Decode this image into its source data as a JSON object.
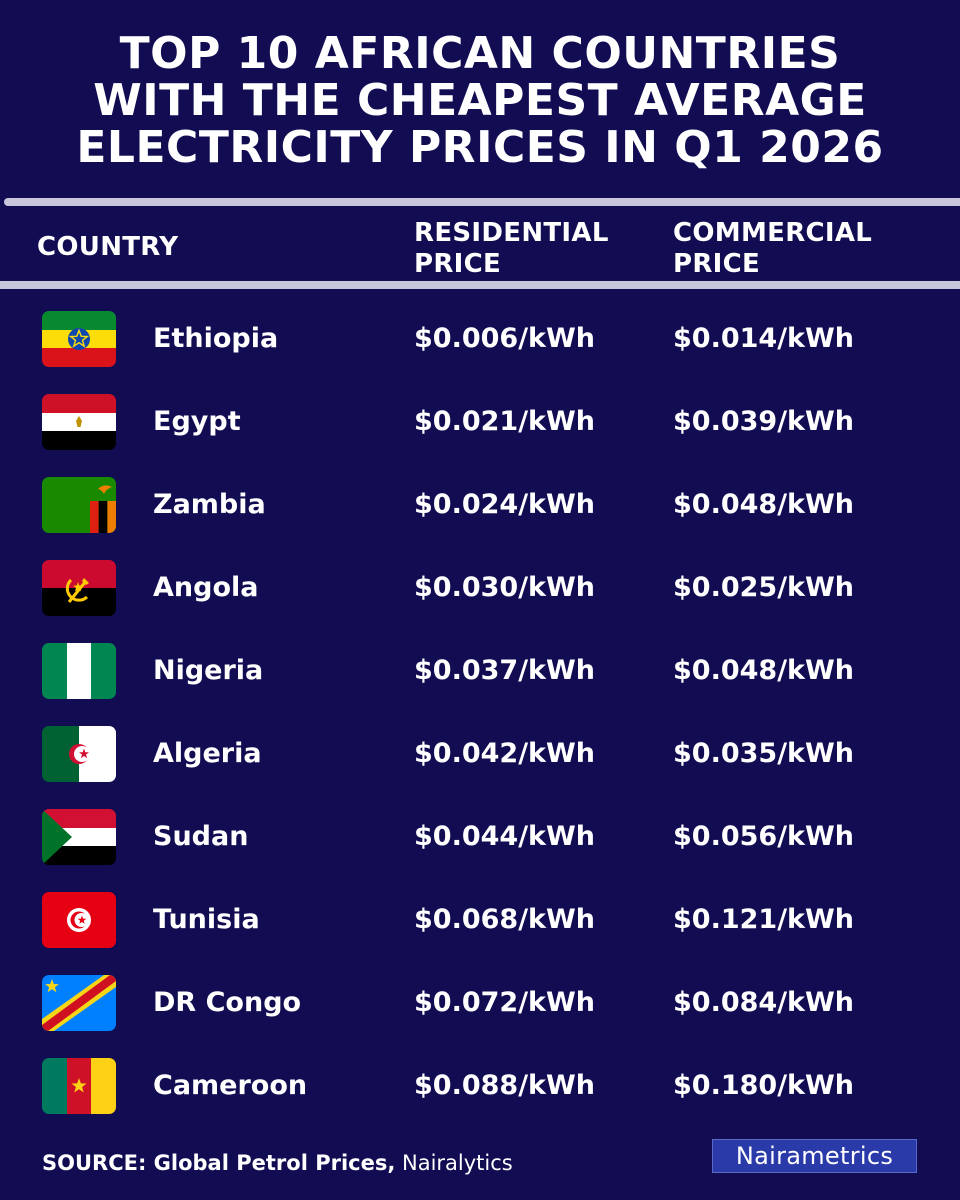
{
  "title_lines": [
    "TOP 10 AFRICAN COUNTRIES",
    "WITH THE CHEAPEST AVERAGE",
    "ELECTRICITY PRICES IN Q1 2026"
  ],
  "headers": {
    "country": "COUNTRY",
    "residential": [
      "RESIDENTIAL",
      "PRICE"
    ],
    "commercial": [
      "COMMERCIAL",
      "PRICE"
    ]
  },
  "chart_data": {
    "type": "table",
    "title": "TOP 10 AFRICAN COUNTRIES WITH THE CHEAPEST AVERAGE ELECTRICITY PRICES IN Q1 2026",
    "columns": [
      "COUNTRY",
      "RESIDENTIAL PRICE",
      "COMMERCIAL PRICE"
    ],
    "rows": [
      {
        "country": "Ethiopia",
        "flag": "ethiopia-flag-icon",
        "residential": "$0.006/kWh",
        "commercial": "$0.014/kWh"
      },
      {
        "country": "Egypt",
        "flag": "egypt-flag-icon",
        "residential": "$0.021/kWh",
        "commercial": "$0.039/kWh"
      },
      {
        "country": "Zambia",
        "flag": "zambia-flag-icon",
        "residential": "$0.024/kWh",
        "commercial": "$0.048/kWh"
      },
      {
        "country": "Angola",
        "flag": "angola-flag-icon",
        "residential": "$0.030/kWh",
        "commercial": "$0.025/kWh"
      },
      {
        "country": "Nigeria",
        "flag": "nigeria-flag-icon",
        "residential": "$0.037/kWh",
        "commercial": "$0.048/kWh"
      },
      {
        "country": "Algeria",
        "flag": "algeria-flag-icon",
        "residential": "$0.042/kWh",
        "commercial": "$0.035/kWh"
      },
      {
        "country": "Sudan",
        "flag": "sudan-flag-icon",
        "residential": "$0.044/kWh",
        "commercial": "$0.056/kWh"
      },
      {
        "country": "Tunisia",
        "flag": "tunisia-flag-icon",
        "residential": "$0.068/kWh",
        "commercial": "$0.121/kWh"
      },
      {
        "country": "DR Congo",
        "flag": "dr-congo-flag-icon",
        "residential": "$0.072/kWh",
        "commercial": "$0.084/kWh"
      },
      {
        "country": "Cameroon",
        "flag": "cameroon-flag-icon",
        "residential": "$0.088/kWh",
        "commercial": "$0.180/kWh"
      }
    ]
  },
  "source": {
    "label": "SOURCE: Global Petrol Prices,",
    "rest": " Nairalytics"
  },
  "logo": "Nairametrics",
  "colors": {
    "background": "#120c52",
    "rule": "#c8c6da",
    "logo_bg": "#2a3aa8"
  }
}
